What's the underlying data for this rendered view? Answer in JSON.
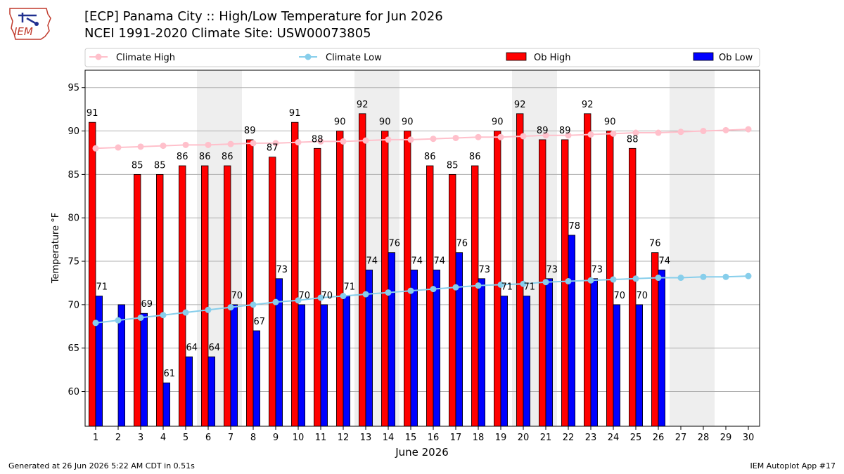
{
  "header": {
    "title_line1": "[ECP] Panama City :: High/Low Temperature for Jun 2026",
    "title_line2": "NCEI 1991-2020 Climate Site: USW00073805",
    "logo_text": "IEM"
  },
  "footer": {
    "generated": "Generated at 26 Jun 2026 5:22 AM CDT in 0.51s",
    "app": "IEM Autoplot App #17"
  },
  "colors": {
    "climate_high": "#ffc0cb",
    "climate_low": "#87ceeb",
    "ob_high": "#ff0000",
    "ob_low": "#0000ff",
    "weekend_shade": "#eeeeee",
    "grid": "#b0b0b0"
  },
  "chart_data": {
    "type": "bar",
    "xlabel": "June 2026",
    "ylabel": "Temperature °F",
    "ylim": [
      56,
      97
    ],
    "yticks": [
      60,
      65,
      70,
      75,
      80,
      85,
      90,
      95
    ],
    "grid": true,
    "legend_position": "top",
    "categories": [
      "1",
      "2",
      "3",
      "4",
      "5",
      "6",
      "7",
      "8",
      "9",
      "10",
      "11",
      "12",
      "13",
      "14",
      "15",
      "16",
      "17",
      "18",
      "19",
      "20",
      "21",
      "22",
      "23",
      "24",
      "25",
      "26",
      "27",
      "28",
      "29",
      "30"
    ],
    "shaded_days": [
      6,
      7,
      13,
      14,
      20,
      21,
      27,
      28
    ],
    "series": [
      {
        "name": "Climate High",
        "kind": "line",
        "values": [
          88.0,
          88.1,
          88.2,
          88.3,
          88.4,
          88.4,
          88.5,
          88.6,
          88.6,
          88.7,
          88.8,
          88.8,
          88.9,
          89.0,
          89.0,
          89.1,
          89.2,
          89.3,
          89.3,
          89.4,
          89.5,
          89.5,
          89.6,
          89.7,
          89.8,
          89.8,
          89.9,
          90.0,
          90.1,
          90.2
        ]
      },
      {
        "name": "Climate Low",
        "kind": "line",
        "values": [
          67.9,
          68.2,
          68.5,
          68.8,
          69.1,
          69.4,
          69.7,
          70.0,
          70.3,
          70.5,
          70.8,
          71.0,
          71.2,
          71.4,
          71.6,
          71.8,
          72.0,
          72.2,
          72.3,
          72.4,
          72.6,
          72.7,
          72.8,
          72.9,
          73.0,
          73.1,
          73.1,
          73.2,
          73.2,
          73.3
        ]
      },
      {
        "name": "Ob High",
        "kind": "bar",
        "values": [
          91,
          null,
          85,
          85,
          86,
          86,
          86,
          89,
          87,
          91,
          88,
          90,
          92,
          90,
          90,
          86,
          85,
          86,
          90,
          92,
          89,
          89,
          92,
          90,
          88,
          76,
          null,
          null,
          null,
          null
        ],
        "labels": [
          "91",
          "",
          "85",
          "85",
          "86",
          "86",
          "86",
          "89",
          "87",
          "91",
          "88",
          "90",
          "92",
          "90",
          "90",
          "86",
          "85",
          "86",
          "90",
          "92",
          "89",
          "89",
          "92",
          "90",
          "88",
          "76",
          "",
          "",
          "",
          ""
        ]
      },
      {
        "name": "Ob Low",
        "kind": "bar",
        "values": [
          71,
          70,
          69,
          61,
          64,
          64,
          70,
          67,
          73,
          70,
          70,
          71,
          74,
          76,
          74,
          74,
          76,
          73,
          71,
          71,
          73,
          78,
          73,
          70,
          70,
          74,
          null,
          null,
          null,
          null
        ],
        "labels": [
          "71",
          "",
          "69",
          "61",
          "64",
          "64",
          "70",
          "67",
          "73",
          "70",
          "70",
          "71",
          "74",
          "76",
          "74",
          "74",
          "76",
          "73",
          "71",
          "71",
          "73",
          "78",
          "73",
          "70",
          "70",
          "74",
          "",
          "",
          "",
          ""
        ]
      }
    ]
  }
}
